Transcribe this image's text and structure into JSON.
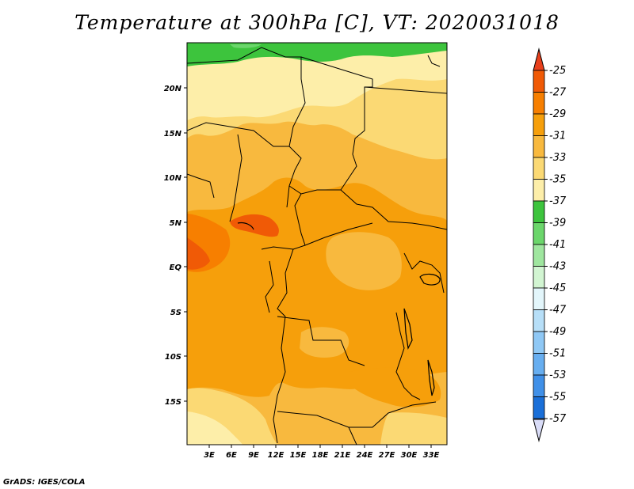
{
  "title": "Temperature at 300hPa [C], VT: 2020031018",
  "credit": "GrADS: IGES/COLA",
  "map": {
    "variable": "Temperature",
    "level": "300hPa",
    "units": "C",
    "valid_time": "2020031018",
    "lat_labels": [
      "20N",
      "15N",
      "10N",
      "5N",
      "EQ",
      "5S",
      "10S",
      "15S"
    ],
    "lon_labels": [
      "3E",
      "6E",
      "9E",
      "12E",
      "15E",
      "18E",
      "21E",
      "24E",
      "27E",
      "30E",
      "33E"
    ]
  },
  "colorbar": {
    "labels": [
      "-25",
      "-27",
      "-29",
      "-31",
      "-33",
      "-35",
      "-37",
      "-39",
      "-41",
      "-43",
      "-45",
      "-47",
      "-49",
      "-51",
      "-53",
      "-55",
      "-57"
    ],
    "colors": [
      "#f05a06",
      "#f77f00",
      "#f69f0b",
      "#f8b93e",
      "#fbd974",
      "#fdeea9",
      "#3dc43d",
      "#6bd66b",
      "#9fe69f",
      "#d2f5d2",
      "#e3f6fb",
      "#b7dff8",
      "#8fc8f5",
      "#67aef0",
      "#4090e8",
      "#1a6fd8",
      "#0a4cb5",
      "#062a90",
      "#05135f",
      "#dce0f5"
    ],
    "top_tip_color": "#e8401c",
    "bottom_tip_color": "#d9dcf7"
  }
}
